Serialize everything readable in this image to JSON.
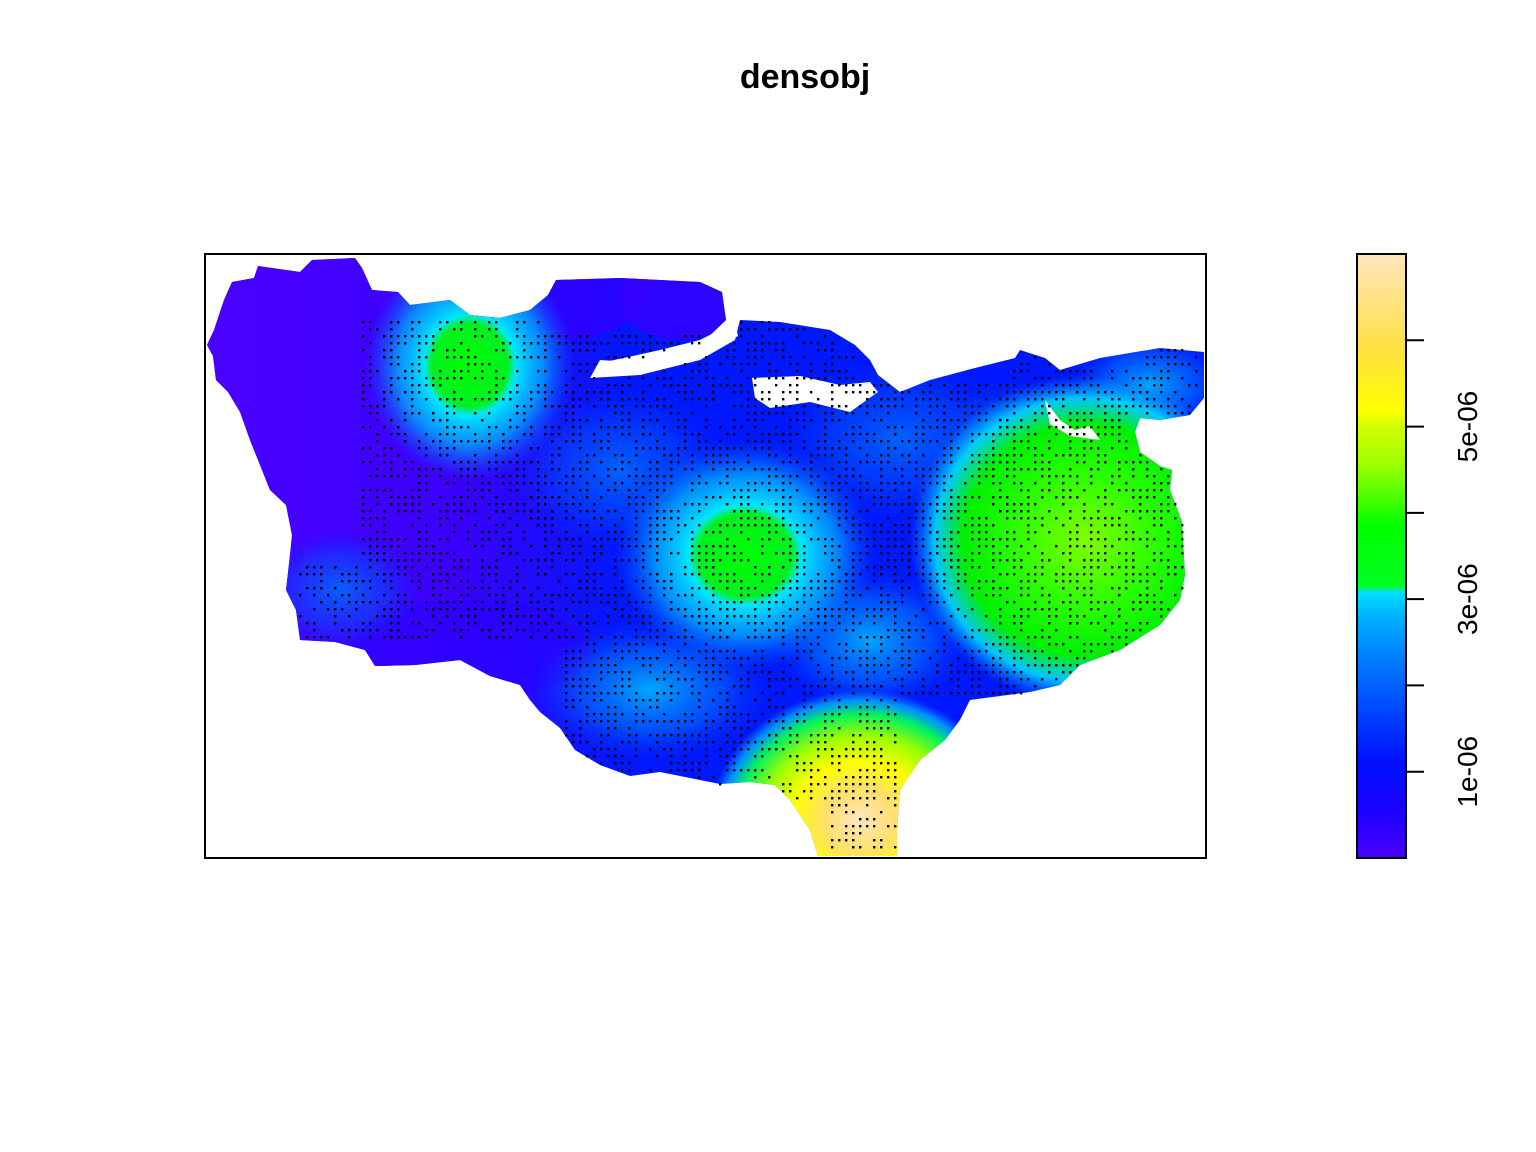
{
  "chart_data": {
    "type": "heatmap",
    "title": "densobj",
    "xlabel": "",
    "ylabel": "",
    "colorbar": {
      "palette": "rainbow-like (purple → blue → cyan → green → yellow → beige)",
      "range": [
        0,
        7e-06
      ],
      "ticks": [
        0,
        1e-06,
        2e-06,
        3e-06,
        4e-06,
        5e-06,
        6e-06
      ],
      "tick_labels": [
        "1e-06",
        "3e-06",
        "5e-06"
      ],
      "labeled_tick_values": [
        1e-06,
        3e-06,
        5e-06
      ],
      "colors": [
        "#4B00FF",
        "#0011FF",
        "#0055FF",
        "#00A8FF",
        "#00E6FF",
        "#00FF00",
        "#9BFF00",
        "#FFFF00",
        "#FFD966",
        "#FFE6B8"
      ]
    },
    "data_points": "approximately regular lattice of small triangle markers over the region",
    "density_hotspots": [
      {
        "name": "south",
        "value": 6.5e-06
      },
      {
        "name": "east",
        "value": 3.5e-06
      },
      {
        "name": "center",
        "value": 2.9e-06
      },
      {
        "name": "north-west",
        "value": 2.8e-06
      }
    ]
  }
}
